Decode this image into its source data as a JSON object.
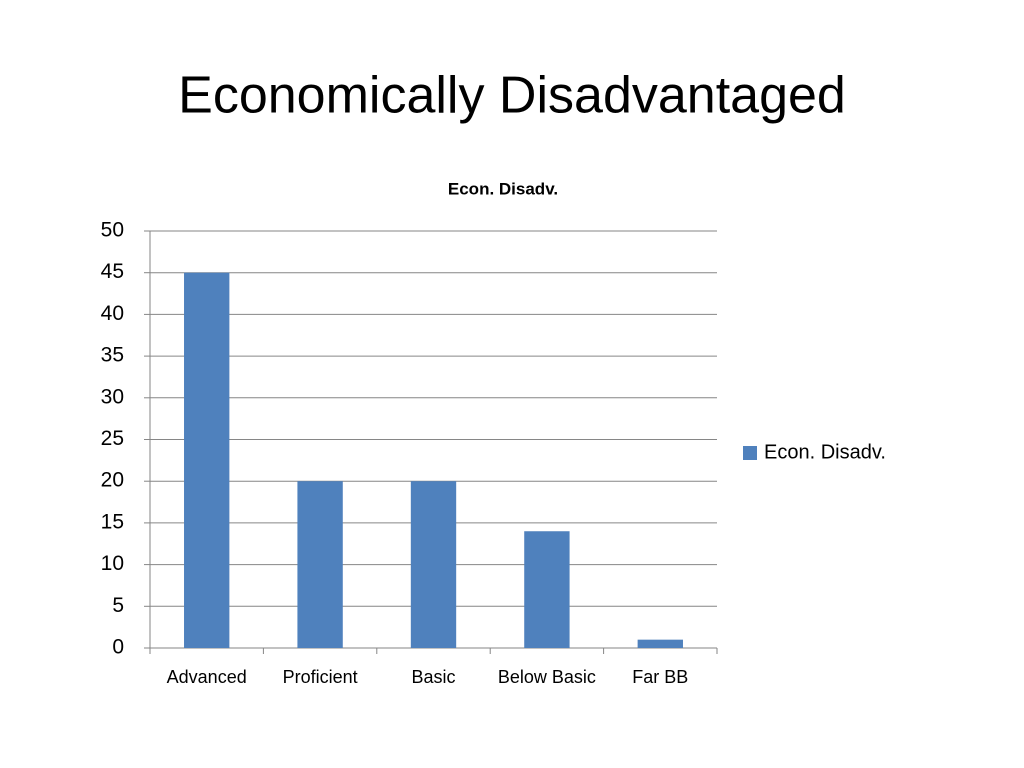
{
  "slide_title": "Economically Disadvantaged",
  "chart_data": {
    "type": "bar",
    "title": "Econ. Disadv.",
    "categories": [
      "Advanced",
      "Proficient",
      "Basic",
      "Below Basic",
      "Far BB"
    ],
    "series": [
      {
        "name": "Econ. Disadv.",
        "color": "#4f81bd",
        "values": [
          45,
          20,
          20,
          14,
          1
        ]
      }
    ],
    "ylim": [
      0,
      50
    ],
    "yticks": [
      0,
      5,
      10,
      15,
      20,
      25,
      30,
      35,
      40,
      45,
      50
    ],
    "grid": true,
    "legend": "right"
  }
}
